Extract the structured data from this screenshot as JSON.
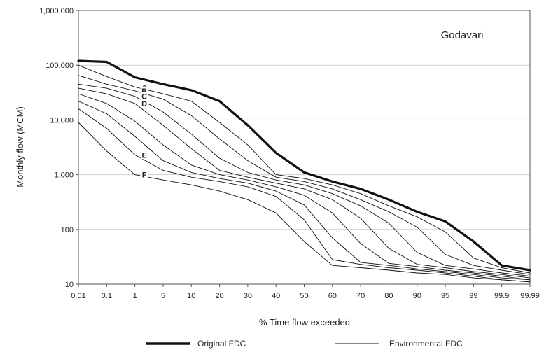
{
  "chart_data": {
    "type": "line",
    "title": "Godavari",
    "xlabel": "% Time flow exceeded",
    "ylabel": "Monthly flow (MCM)",
    "y_scale": "log",
    "ylim": [
      10,
      1000000
    ],
    "grid": "horizontal",
    "x_tick_labels": [
      "0.01",
      "0.1",
      "1",
      "5",
      "10",
      "20",
      "30",
      "40",
      "50",
      "60",
      "70",
      "80",
      "90",
      "95",
      "99",
      "99.9",
      "99.99"
    ],
    "y_tick_labels": [
      "10",
      "100",
      "1,000",
      "10,000",
      "100,000",
      "1,000,000"
    ],
    "y_ticks": [
      10,
      100,
      1000,
      10000,
      100000,
      1000000
    ],
    "legend": {
      "position": "bottom",
      "original": "Original FDC",
      "environmental": "Environmental FDC"
    },
    "series": [
      {
        "label": "",
        "kind": "original",
        "values": [
          120000,
          115000,
          60000,
          45000,
          35000,
          22000,
          8000,
          2500,
          1100,
          750,
          550,
          350,
          210,
          140,
          60,
          22,
          18
        ]
      },
      {
        "label": "A",
        "kind": "environmental",
        "values": [
          100000,
          62000,
          40000,
          30000,
          22000,
          9000,
          3500,
          1000,
          850,
          650,
          450,
          270,
          170,
          90,
          30,
          20,
          16
        ]
      },
      {
        "label": "B",
        "kind": "environmental",
        "values": [
          65000,
          45000,
          34000,
          24000,
          12000,
          4500,
          1800,
          900,
          750,
          550,
          350,
          210,
          110,
          35,
          22,
          18,
          15
        ]
      },
      {
        "label": "C",
        "kind": "environmental",
        "values": [
          45000,
          38000,
          27000,
          14000,
          5500,
          2000,
          1100,
          800,
          650,
          450,
          270,
          130,
          38,
          22,
          19,
          16,
          14
        ]
      },
      {
        "label": "D",
        "kind": "environmental",
        "values": [
          38000,
          30000,
          20000,
          8000,
          3000,
          1200,
          900,
          700,
          550,
          350,
          160,
          45,
          23,
          20,
          17,
          15,
          13
        ]
      },
      {
        "label": "",
        "kind": "environmental",
        "values": [
          30000,
          20000,
          9500,
          3500,
          1500,
          1000,
          800,
          600,
          420,
          200,
          55,
          24,
          21,
          18,
          16,
          14,
          12
        ]
      },
      {
        "label": "",
        "kind": "environmental",
        "values": [
          22000,
          13000,
          5000,
          1800,
          1100,
          850,
          700,
          500,
          280,
          70,
          25,
          22,
          19,
          17,
          15,
          13,
          12
        ]
      },
      {
        "label": "E",
        "kind": "environmental",
        "values": [
          16000,
          7000,
          2300,
          1200,
          900,
          750,
          600,
          400,
          150,
          28,
          23,
          20,
          18,
          16,
          14,
          12,
          11
        ]
      },
      {
        "label": "F",
        "kind": "environmental",
        "values": [
          9000,
          2700,
          1000,
          800,
          650,
          500,
          350,
          200,
          60,
          22,
          20,
          18,
          16,
          15,
          13,
          12,
          11
        ]
      }
    ]
  }
}
